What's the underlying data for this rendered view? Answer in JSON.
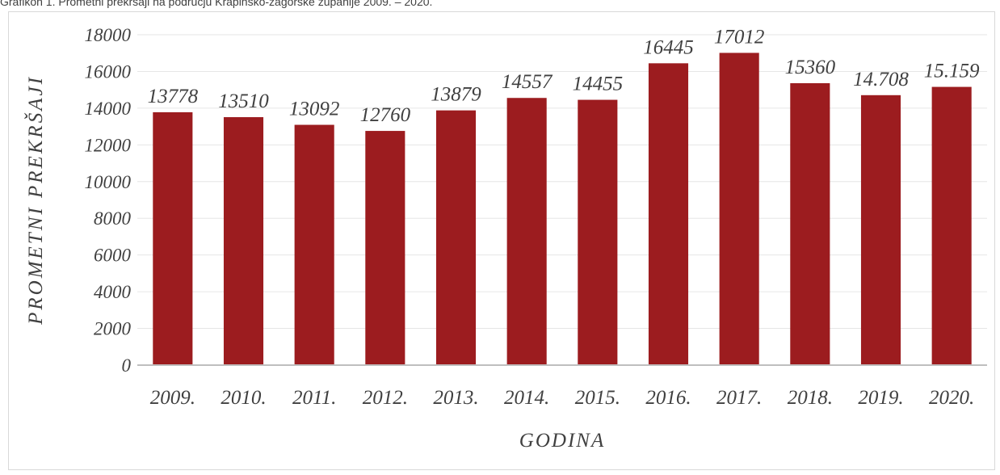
{
  "caption": "Grafikon 1. Prometni prekršaji na području Krapinsko-zagorske županije 2009. – 2020.",
  "chart_data": {
    "type": "bar",
    "title": "",
    "xlabel": "GODINA",
    "ylabel": "PROMETNI PREKRŠAJI",
    "categories": [
      "2009.",
      "2010.",
      "2011.",
      "2012.",
      "2013.",
      "2014.",
      "2015.",
      "2016.",
      "2017.",
      "2018.",
      "2019.",
      "2020."
    ],
    "values": [
      13778,
      13510,
      13092,
      12760,
      13879,
      14557,
      14455,
      16445,
      17012,
      15360,
      14708,
      15159
    ],
    "data_labels": [
      "13778",
      "13510",
      "13092",
      "12760",
      "13879",
      "14557",
      "14455",
      "16445",
      "17012",
      "15360",
      "14.708",
      "15.159"
    ],
    "yticks": [
      "0",
      "2000",
      "4000",
      "6000",
      "8000",
      "10000",
      "12000",
      "14000",
      "16000",
      "18000"
    ],
    "ylim": [
      0,
      18000
    ],
    "grid": true,
    "legend": "none",
    "bar_color": "#9c1c1f"
  }
}
